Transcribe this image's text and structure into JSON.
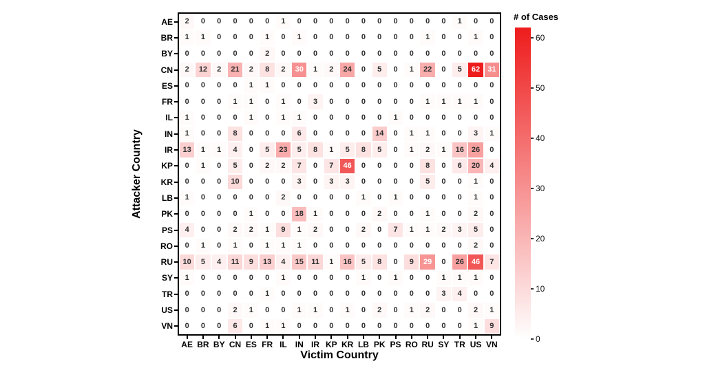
{
  "chart_data": {
    "type": "heatmap",
    "title": "",
    "xlabel": "Victim Country",
    "ylabel": "Attacker Country",
    "colorbar_label": "# of Cases",
    "colorbar_ticks": [
      60,
      50,
      40,
      30,
      20,
      10,
      0
    ],
    "value_range": [
      0,
      62
    ],
    "color_low": "#ffffff",
    "color_high": "#ee1c1c",
    "grid": false,
    "legend_position": "right-colorbar",
    "categories_x": [
      "AE",
      "BR",
      "BY",
      "CN",
      "ES",
      "FR",
      "IL",
      "IN",
      "IR",
      "KP",
      "KR",
      "LB",
      "PK",
      "PS",
      "RO",
      "RU",
      "SY",
      "TR",
      "US",
      "VN"
    ],
    "categories_y": [
      "AE",
      "BR",
      "BY",
      "CN",
      "ES",
      "FR",
      "IL",
      "IN",
      "IR",
      "KP",
      "KR",
      "LB",
      "PK",
      "PS",
      "RO",
      "RU",
      "SY",
      "TR",
      "US",
      "VN"
    ],
    "values": [
      [
        2,
        0,
        0,
        0,
        0,
        0,
        1,
        0,
        0,
        0,
        0,
        0,
        0,
        0,
        0,
        0,
        0,
        1,
        0,
        0
      ],
      [
        1,
        1,
        0,
        0,
        0,
        1,
        0,
        1,
        0,
        0,
        0,
        0,
        0,
        0,
        0,
        1,
        0,
        0,
        1,
        0
      ],
      [
        0,
        0,
        0,
        0,
        0,
        2,
        0,
        0,
        0,
        0,
        0,
        0,
        0,
        0,
        0,
        0,
        0,
        0,
        0,
        0
      ],
      [
        2,
        12,
        2,
        21,
        2,
        8,
        2,
        30,
        1,
        2,
        24,
        0,
        5,
        0,
        1,
        22,
        0,
        5,
        62,
        31
      ],
      [
        0,
        0,
        0,
        0,
        1,
        1,
        0,
        0,
        0,
        0,
        0,
        0,
        0,
        0,
        0,
        0,
        0,
        0,
        0,
        0
      ],
      [
        0,
        0,
        0,
        1,
        1,
        0,
        1,
        0,
        3,
        0,
        0,
        0,
        0,
        0,
        0,
        1,
        1,
        1,
        1,
        0
      ],
      [
        1,
        0,
        0,
        0,
        1,
        0,
        1,
        1,
        0,
        0,
        0,
        0,
        0,
        1,
        0,
        0,
        0,
        0,
        0,
        0
      ],
      [
        1,
        0,
        0,
        8,
        0,
        0,
        0,
        6,
        0,
        0,
        0,
        0,
        14,
        0,
        1,
        1,
        0,
        0,
        3,
        1
      ],
      [
        13,
        1,
        1,
        4,
        0,
        5,
        23,
        5,
        8,
        1,
        5,
        8,
        5,
        0,
        1,
        2,
        1,
        16,
        26,
        0
      ],
      [
        0,
        1,
        0,
        5,
        0,
        2,
        2,
        7,
        0,
        7,
        46,
        0,
        0,
        0,
        0,
        8,
        0,
        6,
        20,
        4
      ],
      [
        0,
        0,
        0,
        10,
        0,
        0,
        0,
        3,
        0,
        3,
        3,
        0,
        0,
        0,
        0,
        5,
        0,
        0,
        1,
        0
      ],
      [
        1,
        0,
        0,
        0,
        0,
        0,
        2,
        0,
        0,
        0,
        0,
        1,
        0,
        1,
        0,
        0,
        0,
        0,
        1,
        0
      ],
      [
        0,
        0,
        0,
        0,
        1,
        0,
        0,
        18,
        1,
        0,
        0,
        0,
        2,
        0,
        0,
        1,
        0,
        0,
        2,
        0
      ],
      [
        4,
        0,
        0,
        2,
        2,
        1,
        9,
        1,
        2,
        0,
        0,
        2,
        0,
        7,
        1,
        1,
        2,
        3,
        5,
        0
      ],
      [
        0,
        1,
        0,
        1,
        0,
        1,
        1,
        1,
        0,
        0,
        0,
        0,
        0,
        0,
        0,
        0,
        0,
        0,
        2,
        0
      ],
      [
        10,
        5,
        4,
        11,
        9,
        13,
        4,
        15,
        11,
        1,
        16,
        5,
        8,
        0,
        9,
        29,
        0,
        26,
        46,
        7
      ],
      [
        1,
        0,
        0,
        0,
        0,
        0,
        1,
        0,
        0,
        0,
        0,
        1,
        0,
        1,
        0,
        0,
        1,
        1,
        1,
        0
      ],
      [
        0,
        0,
        0,
        0,
        0,
        1,
        0,
        0,
        0,
        0,
        0,
        0,
        0,
        0,
        0,
        0,
        3,
        4,
        0,
        0
      ],
      [
        0,
        0,
        0,
        2,
        1,
        0,
        0,
        1,
        1,
        0,
        1,
        0,
        2,
        0,
        1,
        2,
        0,
        0,
        2,
        1
      ],
      [
        0,
        0,
        0,
        6,
        0,
        1,
        1,
        0,
        0,
        0,
        0,
        0,
        0,
        0,
        0,
        0,
        0,
        0,
        1,
        9
      ]
    ]
  }
}
